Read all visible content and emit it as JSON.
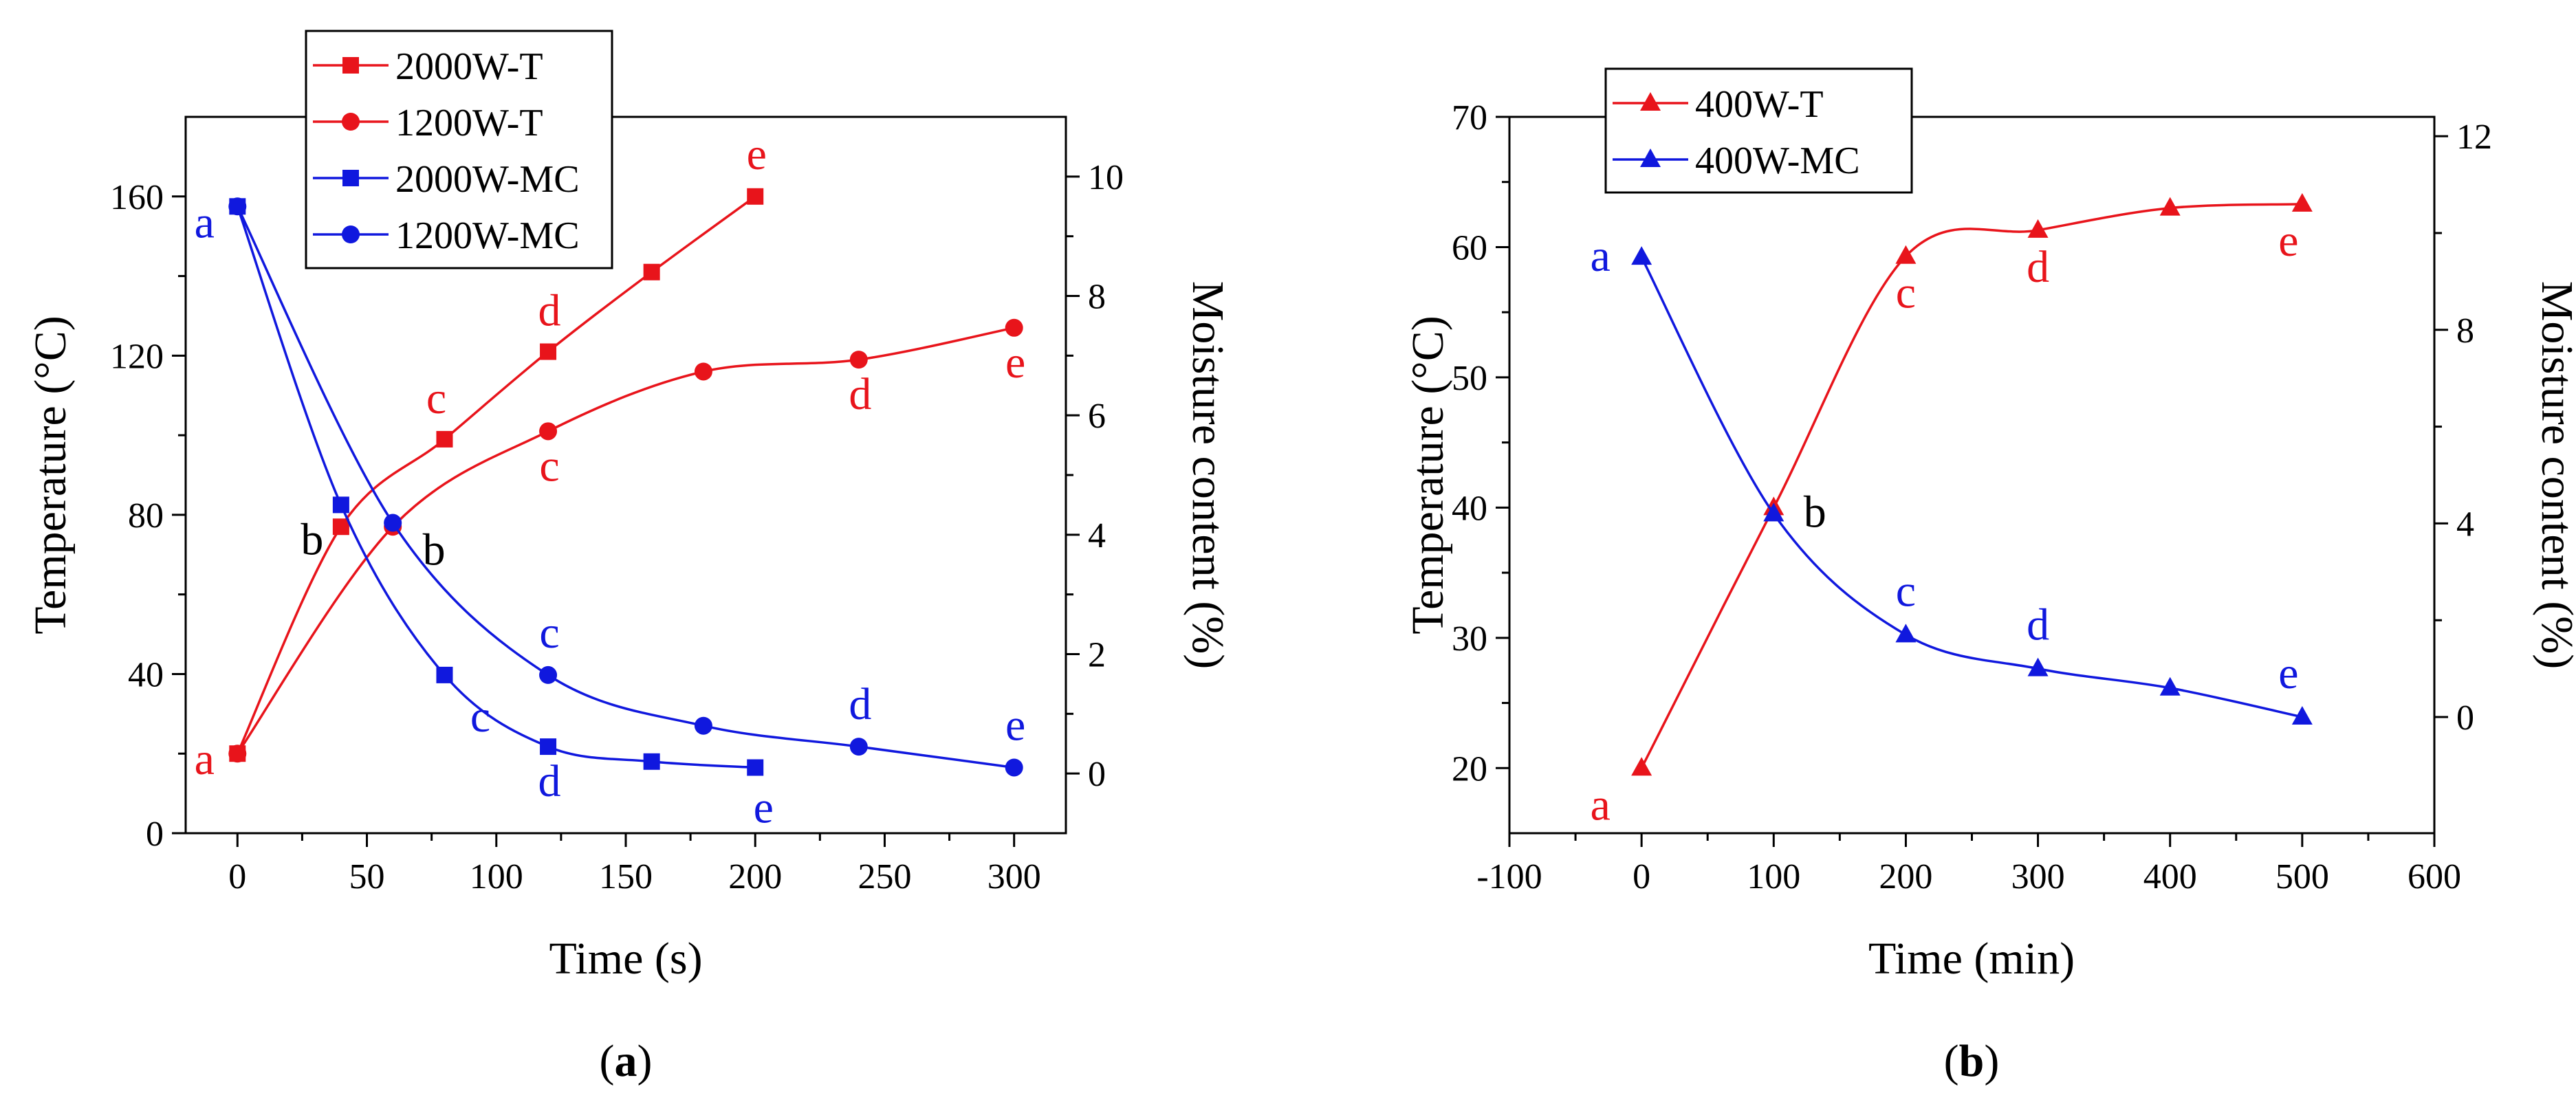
{
  "panels": [
    {
      "panel_label": "(a)",
      "panel_letter": "a",
      "colors": {
        "T": "#e8141b",
        "MC": "#1018de"
      },
      "chart_data": {
        "type": "line",
        "title": "",
        "xlabel": "Time (s)",
        "ylabel": "Temperature (°C)",
        "y2label": "Moisture content (%)",
        "xlim": [
          -20,
          320
        ],
        "ylim": [
          0,
          180
        ],
        "y2lim": [
          -1,
          11
        ],
        "xticks": [
          0,
          50,
          100,
          150,
          200,
          250,
          300
        ],
        "xticklabels": [
          "0",
          "50",
          "100",
          "150",
          "200",
          "250",
          "300"
        ],
        "yticks": [
          0,
          40,
          80,
          120,
          160
        ],
        "yticklabels": [
          "0",
          "40",
          "80",
          "120",
          "160"
        ],
        "y2ticks": [
          0,
          2,
          4,
          6,
          8,
          10
        ],
        "y2ticklabels": [
          "0",
          "2",
          "4",
          "6",
          "8",
          "10"
        ],
        "legend_position": "top-left",
        "series": [
          {
            "name": "2000W-T",
            "axis": "left",
            "color": "#e8141b",
            "marker": "square",
            "x": [
              0,
              40,
              80,
              120,
              160,
              200
            ],
            "y": [
              20,
              77,
              99,
              121,
              141,
              160
            ],
            "point_labels": [
              "a",
              "b",
              "c",
              "d",
              "",
              "e"
            ],
            "label_colors": [
              "#e8141b",
              "#000000",
              "#e8141b",
              "#e8141b",
              "",
              "#e8141b"
            ]
          },
          {
            "name": "1200W-T",
            "axis": "left",
            "color": "#e8141b",
            "marker": "circle",
            "x": [
              0,
              60,
              120,
              180,
              240,
              300
            ],
            "y": [
              20,
              77,
              101,
              116,
              119,
              127
            ],
            "point_labels": [
              "",
              "b",
              "c",
              "",
              "d",
              "e"
            ],
            "label_colors": [
              "",
              "#000000",
              "#e8141b",
              "",
              "#e8141b",
              "#e8141b"
            ]
          },
          {
            "name": "2000W-MC",
            "axis": "right",
            "color": "#1018de",
            "marker": "square",
            "x": [
              0,
              40,
              80,
              120,
              160,
              200
            ],
            "y": [
              9.5,
              4.5,
              1.65,
              0.45,
              0.2,
              0.1
            ],
            "point_labels": [
              "a",
              "",
              "c",
              "d",
              "",
              "e"
            ],
            "label_colors": [
              "#1018de",
              "",
              "#1018de",
              "#1018de",
              "",
              "#1018de"
            ]
          },
          {
            "name": "1200W-MC",
            "axis": "right",
            "color": "#1018de",
            "marker": "circle",
            "x": [
              0,
              60,
              120,
              180,
              240,
              300
            ],
            "y": [
              9.5,
              4.2,
              1.65,
              0.8,
              0.45,
              0.1
            ],
            "point_labels": [
              "",
              "",
              "c",
              "",
              "d",
              "e"
            ],
            "label_colors": [
              "",
              "",
              "#1018de",
              "",
              "#1018de",
              "#1018de"
            ]
          }
        ]
      }
    },
    {
      "panel_label": "(b)",
      "panel_letter": "b",
      "colors": {
        "T": "#e8141b",
        "MC": "#1018de"
      },
      "chart_data": {
        "type": "line",
        "title": "",
        "xlabel": "Time (min)",
        "ylabel": "Temperature (°C)",
        "y2label": "Moisture content (%)",
        "xlim": [
          -100,
          600
        ],
        "ylim": [
          15,
          70
        ],
        "y2lim": [
          -2.4,
          12.4
        ],
        "xticks": [
          -100,
          0,
          100,
          200,
          300,
          400,
          500,
          600
        ],
        "xticklabels": [
          "-100",
          "0",
          "100",
          "200",
          "300",
          "400",
          "500",
          "600"
        ],
        "yticks": [
          20,
          30,
          40,
          50,
          60,
          70
        ],
        "yticklabels": [
          "20",
          "30",
          "40",
          "50",
          "60",
          "70"
        ],
        "y2ticks": [
          0,
          4,
          8,
          12
        ],
        "y2ticklabels": [
          "0",
          "4",
          "8",
          "12"
        ],
        "legend_position": "top-left",
        "series": [
          {
            "name": "400W-T",
            "axis": "left",
            "color": "#e8141b",
            "marker": "triangle",
            "x": [
              0,
              100,
              200,
              300,
              400,
              500
            ],
            "y": [
              20,
              40,
              59.3,
              61.3,
              63,
              63.3
            ],
            "point_labels": [
              "a",
              "b",
              "c",
              "d",
              "",
              "e"
            ],
            "label_colors": [
              "#e8141b",
              "#000000",
              "#e8141b",
              "#e8141b",
              "",
              "#e8141b"
            ]
          },
          {
            "name": "400W-MC",
            "axis": "right",
            "color": "#1018de",
            "marker": "triangle",
            "x": [
              0,
              100,
              200,
              300,
              400,
              500
            ],
            "y": [
              9.5,
              4.2,
              1.7,
              1.0,
              0.6,
              0.0
            ],
            "point_labels": [
              "a",
              "",
              "c",
              "d",
              "",
              "e"
            ],
            "label_colors": [
              "#1018de",
              "",
              "#1018de",
              "#1018de",
              "",
              "#1018de"
            ]
          }
        ]
      }
    }
  ]
}
